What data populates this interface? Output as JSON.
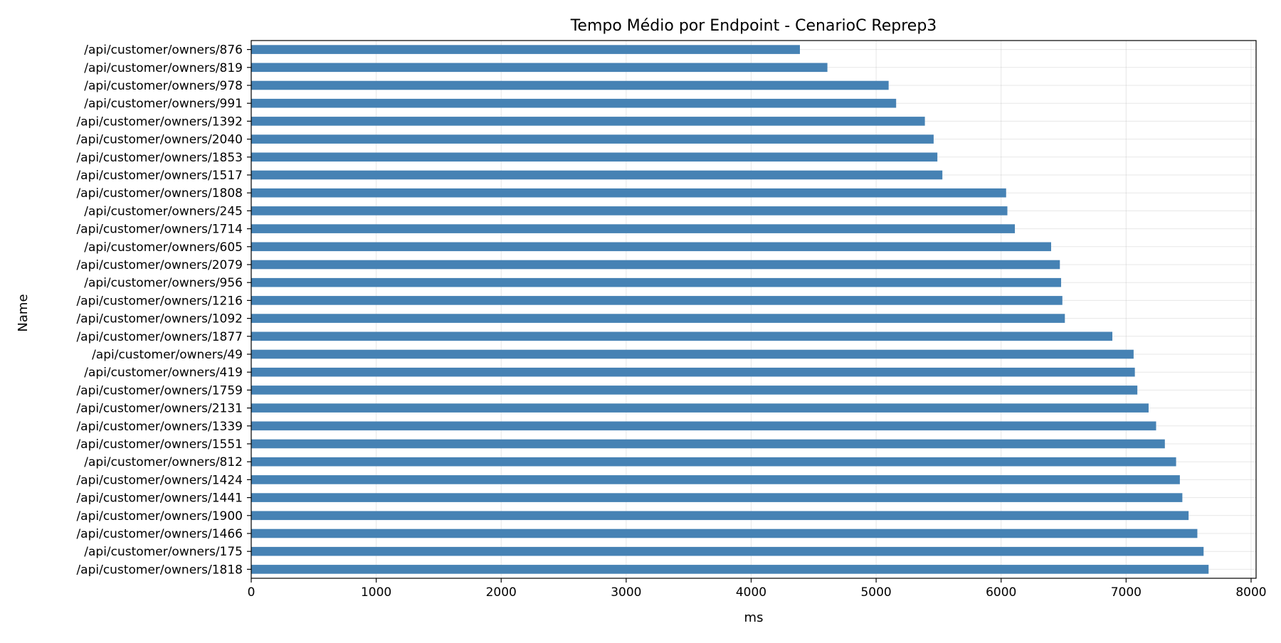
{
  "chart_data": {
    "type": "bar",
    "orientation": "horizontal",
    "title": "Tempo Médio por Endpoint - CenarioC Reprep3",
    "xlabel": "ms",
    "ylabel": "Name",
    "xlim": [
      0,
      8040
    ],
    "xticks": [
      0,
      1000,
      2000,
      3000,
      4000,
      5000,
      6000,
      7000,
      8000
    ],
    "grid": true,
    "categories": [
      "/api/customer/owners/876",
      "/api/customer/owners/819",
      "/api/customer/owners/978",
      "/api/customer/owners/991",
      "/api/customer/owners/1392",
      "/api/customer/owners/2040",
      "/api/customer/owners/1853",
      "/api/customer/owners/1517",
      "/api/customer/owners/1808",
      "/api/customer/owners/245",
      "/api/customer/owners/1714",
      "/api/customer/owners/605",
      "/api/customer/owners/2079",
      "/api/customer/owners/956",
      "/api/customer/owners/1216",
      "/api/customer/owners/1092",
      "/api/customer/owners/1877",
      "/api/customer/owners/49",
      "/api/customer/owners/419",
      "/api/customer/owners/1759",
      "/api/customer/owners/2131",
      "/api/customer/owners/1339",
      "/api/customer/owners/1551",
      "/api/customer/owners/812",
      "/api/customer/owners/1424",
      "/api/customer/owners/1441",
      "/api/customer/owners/1900",
      "/api/customer/owners/1466",
      "/api/customer/owners/175",
      "/api/customer/owners/1818"
    ],
    "values": [
      4390,
      4610,
      5100,
      5160,
      5390,
      5460,
      5490,
      5530,
      6040,
      6050,
      6110,
      6400,
      6470,
      6480,
      6490,
      6510,
      6890,
      7060,
      7070,
      7090,
      7180,
      7240,
      7310,
      7400,
      7430,
      7450,
      7500,
      7570,
      7620,
      7660
    ],
    "bar_color": "#4682B4"
  }
}
